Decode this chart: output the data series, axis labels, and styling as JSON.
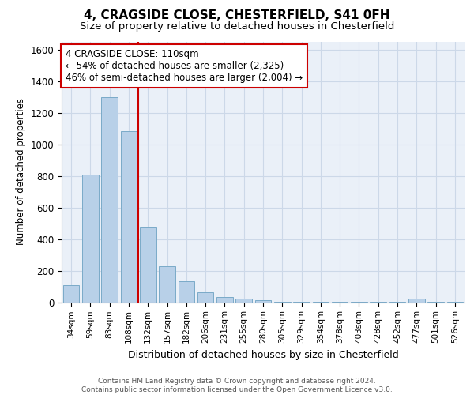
{
  "title1": "4, CRAGSIDE CLOSE, CHESTERFIELD, S41 0FH",
  "title2": "Size of property relative to detached houses in Chesterfield",
  "xlabel": "Distribution of detached houses by size in Chesterfield",
  "ylabel": "Number of detached properties",
  "categories": [
    "34sqm",
    "59sqm",
    "83sqm",
    "108sqm",
    "132sqm",
    "157sqm",
    "182sqm",
    "206sqm",
    "231sqm",
    "255sqm",
    "280sqm",
    "305sqm",
    "329sqm",
    "354sqm",
    "378sqm",
    "403sqm",
    "428sqm",
    "452sqm",
    "477sqm",
    "501sqm",
    "526sqm"
  ],
  "values": [
    108,
    808,
    1300,
    1085,
    480,
    230,
    135,
    65,
    35,
    22,
    12,
    2,
    1,
    1,
    1,
    1,
    1,
    1,
    22,
    1,
    1
  ],
  "bar_color": "#b8d0e8",
  "bar_edge_color": "#7aaac8",
  "vline_color": "#cc0000",
  "vline_bar_index": 3,
  "ylim": [
    0,
    1650
  ],
  "yticks": [
    0,
    200,
    400,
    600,
    800,
    1000,
    1200,
    1400,
    1600
  ],
  "annotation_line1": "4 CRAGSIDE CLOSE: 110sqm",
  "annotation_line2": "← 54% of detached houses are smaller (2,325)",
  "annotation_line3": "46% of semi-detached houses are larger (2,004) →",
  "annotation_box_color": "#ffffff",
  "annotation_box_edge": "#cc0000",
  "footer1": "Contains HM Land Registry data © Crown copyright and database right 2024.",
  "footer2": "Contains public sector information licensed under the Open Government Licence v3.0.",
  "bg_color": "#ffffff",
  "axes_bg_color": "#eaf0f8",
  "grid_color": "#ccd8e8"
}
